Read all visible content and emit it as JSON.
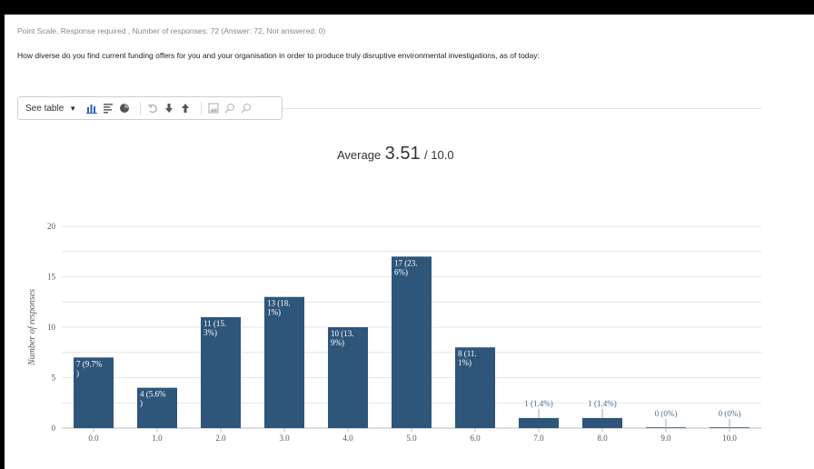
{
  "header": {
    "meta": "Point Scale, Response required , Number of responses: 72 (Answer: 72, Not answered: 0)",
    "question": "How diverse do you find current funding offers for you and your organisation in order to produce truly disruptive environmental investigations, as of today:"
  },
  "toolbar": {
    "view_label": "See table",
    "icons": [
      "bar-chart-icon",
      "horizontal-bar-icon",
      "pie-chart-icon",
      "undo-icon",
      "download-icon",
      "upload-icon",
      "image-icon",
      "zoom-in-icon",
      "zoom-out-icon"
    ]
  },
  "summary": {
    "label": "Average",
    "value": "3.51",
    "max": "/ 10.0"
  },
  "colors": {
    "bar": "#2e557a",
    "grid": "#e6e6e6",
    "label": "#ffffff",
    "outside_label": "#4a6f93"
  },
  "chart_data": {
    "type": "bar",
    "ylabel": "Number of responses",
    "xlabel": "",
    "ylim": [
      0,
      20
    ],
    "yticks": [
      "0",
      "5",
      "10",
      "15",
      "20"
    ],
    "categories": [
      "0.0",
      "1.0",
      "2.0",
      "3.0",
      "4.0",
      "5.0",
      "6.0",
      "7.0",
      "8.0",
      "9.0",
      "10.0"
    ],
    "values": [
      7,
      4,
      11,
      13,
      10,
      17,
      8,
      1,
      1,
      0,
      0
    ],
    "data_labels": [
      [
        "7 (9.7%",
        ")"
      ],
      [
        "4 (5.6%",
        ")"
      ],
      [
        "11 (15.",
        "3%)"
      ],
      [
        "13 (18.",
        "1%)"
      ],
      [
        "10 (13.",
        "9%)"
      ],
      [
        "17 (23.",
        "6%)"
      ],
      [
        "8 (11.",
        "1%)"
      ],
      [
        "1 (1.4%)"
      ],
      [
        "1 (1.4%)"
      ],
      [
        "0 (0%)"
      ],
      [
        "0 (0%)"
      ]
    ],
    "grid": true,
    "legend": "none"
  }
}
